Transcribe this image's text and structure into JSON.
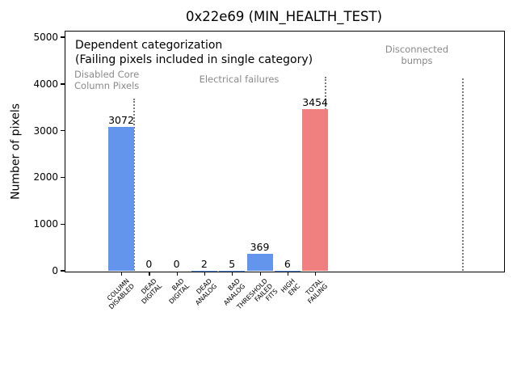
{
  "chart_data": {
    "type": "bar",
    "title": "0x22e69 (MIN_HEALTH_TEST)",
    "ylabel": "Number of pixels",
    "xlabel": "",
    "ylim": [
      0,
      5140
    ],
    "yticks": [
      0,
      1000,
      2000,
      3000,
      4000,
      5000
    ],
    "grid": false,
    "legend": false,
    "categories": [
      "COLUMN\nDISABLED",
      "DEAD\nDIGITAL",
      "BAD\nDIGITAL",
      "DEAD\nANALOG",
      "BAD\nANALOG",
      "THRESHOLD\nFAILED\nFITS",
      "HIGH\nENC",
      "TOTAL\nFAILING"
    ],
    "values": [
      3072,
      0,
      0,
      2,
      5,
      369,
      6,
      3454
    ],
    "value_labels": [
      "3072",
      "0",
      "0",
      "2",
      "5",
      "369",
      "6",
      "3454"
    ],
    "bar_colors": [
      "#6495ed",
      "#6495ed",
      "#6495ed",
      "#6495ed",
      "#6495ed",
      "#6495ed",
      "#6495ed",
      "#f08080"
    ],
    "annotations": [
      {
        "name": "dependent-categorization-note",
        "text": "Dependent categorization",
        "x": 93,
        "y": 48,
        "align": "left",
        "size": 14,
        "color": "#000000"
      },
      {
        "name": "single-category-note",
        "text": "(Failing pixels included in single category)",
        "x": 93,
        "y": 66,
        "align": "left",
        "size": 14,
        "color": "#000000"
      },
      {
        "name": "section-label-disabled-core",
        "text": "Disabled Core\nColumn Pixels",
        "x": 92,
        "y": 86,
        "align": "left",
        "size": 11.5,
        "color": "#8a8a8a"
      },
      {
        "name": "section-label-electrical-failures",
        "text": "Electrical failures",
        "x": 296,
        "y": 92,
        "align": "center",
        "size": 11.5,
        "color": "#8a8a8a"
      },
      {
        "name": "section-label-disconnected-bumps",
        "text": "Disconnected\nbumps",
        "x": 516,
        "y": 55,
        "align": "center",
        "size": 11.5,
        "color": "#8a8a8a"
      }
    ],
    "section_lines": [
      {
        "x": 166,
        "y_top": 122
      },
      {
        "x": 403,
        "y_top": 95
      },
      {
        "x": 573,
        "y_top": 97
      }
    ],
    "colors": {
      "bar_blue": "#6495ed",
      "bar_red": "#f08080",
      "annotation_gray": "#8a8a8a",
      "dotted_line_gray": "#7a7a7a",
      "axis_black": "#000000"
    }
  }
}
